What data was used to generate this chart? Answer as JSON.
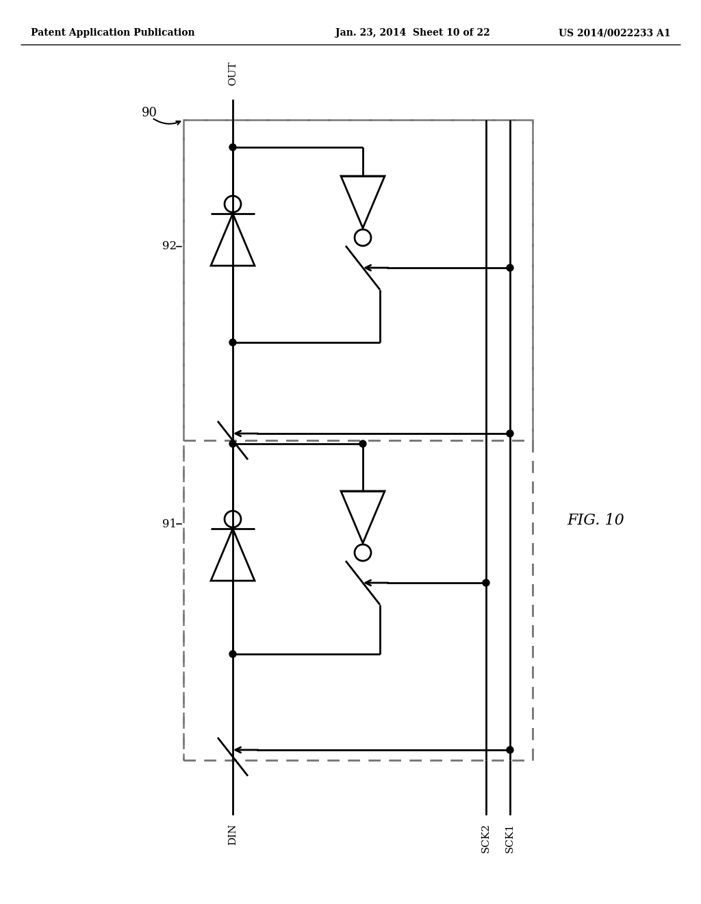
{
  "header_left": "Patent Application Publication",
  "header_mid": "Jan. 23, 2014  Sheet 10 of 22",
  "header_right": "US 2014/0022233 A1",
  "fig_label": "FIG. 10",
  "label_90": "90",
  "label_91": "91",
  "label_92": "92",
  "label_out": "OUT",
  "label_din": "DIN",
  "label_sck1": "SCK1",
  "label_sck2": "SCK2",
  "line_color": "#000000",
  "dash_color": "#777777",
  "bg_color": "#ffffff"
}
